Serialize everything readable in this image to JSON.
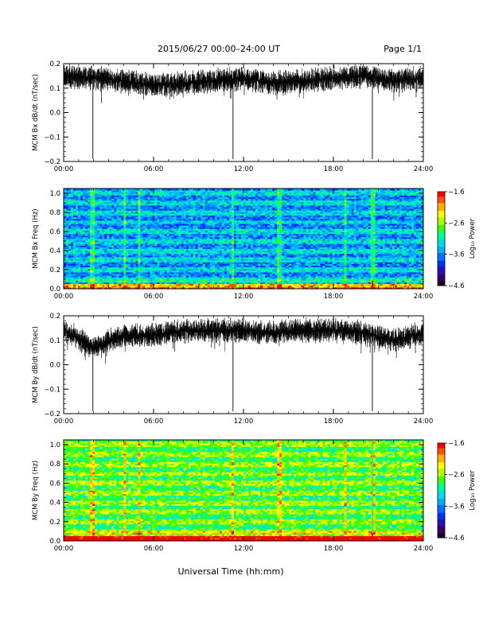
{
  "header": {
    "title": "2015/06/27  00:00–24:00 UT",
    "page": "Page 1/1"
  },
  "footer": {
    "xlabel": "Universal Time (hh:mm)"
  },
  "colors": {
    "trace": "#000000",
    "colormap": [
      "#1a0022",
      "#3a0060",
      "#2a10b0",
      "#0030ff",
      "#0070ff",
      "#00b0ff",
      "#00e0e0",
      "#00ff90",
      "#40ff00",
      "#b0ff00",
      "#ffff00",
      "#ffb000",
      "#ff5000",
      "#ff0000"
    ]
  },
  "chart_data": [
    {
      "type": "line",
      "ylabel": "MCM Bx dB/dt (nT/sec)",
      "x_range_hours": [
        0,
        24
      ],
      "xticks": [
        "00:00",
        "06:00",
        "12:00",
        "18:00",
        "24:00"
      ],
      "yticks": [
        "0.2",
        "0.1",
        "0.0",
        "−0.1",
        "−0.2"
      ],
      "ylim": [
        -0.2,
        0.2
      ],
      "series": [
        {
          "baseline_hours": [
            0,
            2,
            4,
            6,
            8,
            10,
            12,
            14,
            16,
            18,
            20,
            22,
            24
          ],
          "baseline_values": [
            0.15,
            0.14,
            0.13,
            0.11,
            0.12,
            0.13,
            0.14,
            0.12,
            0.13,
            0.14,
            0.15,
            0.13,
            0.14
          ],
          "spikes": [
            {
              "hour": 1.95,
              "value": -0.19
            },
            {
              "hour": 11.3,
              "value": -0.19
            },
            {
              "hour": 20.6,
              "value": -0.19
            }
          ]
        }
      ]
    },
    {
      "type": "heatmap",
      "ylabel": "MCM Bx Freq (Hz)",
      "x_range_hours": [
        0,
        24
      ],
      "xticks": [
        "00:00",
        "06:00",
        "12:00",
        "18:00",
        "24:00"
      ],
      "yticks": [
        "1.0",
        "0.8",
        "0.6",
        "0.4",
        "0.2",
        "0.0"
      ],
      "ylim": [
        0,
        1.05
      ],
      "colorbar": {
        "label": "Log₁₀ Power",
        "ticks": [
          "−1.6",
          "−2.6",
          "−3.6",
          "−4.6"
        ],
        "range": [
          -4.6,
          -1.6
        ]
      },
      "level": -3.6,
      "vertical_streaks_hours": [
        1.95,
        4.1,
        5.05,
        11.3,
        14.4,
        18.8,
        20.6
      ],
      "bright_streak_hour": 20.6
    },
    {
      "type": "line",
      "ylabel": "MCM By dB/dt (nT/sec)",
      "x_range_hours": [
        0,
        24
      ],
      "xticks": [
        "00:00",
        "06:00",
        "12:00",
        "18:00",
        "24:00"
      ],
      "yticks": [
        "0.2",
        "0.1",
        "0.0",
        "−0.1",
        "−0.2"
      ],
      "ylim": [
        -0.2,
        0.2
      ],
      "series": [
        {
          "baseline_hours": [
            0,
            2,
            4,
            6,
            8,
            10,
            12,
            14,
            16,
            18,
            20,
            22,
            24
          ],
          "baseline_values": [
            0.14,
            0.07,
            0.12,
            0.12,
            0.14,
            0.14,
            0.14,
            0.13,
            0.14,
            0.14,
            0.13,
            0.1,
            0.13
          ],
          "spikes": [
            {
              "hour": 1.95,
              "value": -0.19
            },
            {
              "hour": 11.3,
              "value": -0.19
            },
            {
              "hour": 20.6,
              "value": -0.19
            }
          ]
        }
      ]
    },
    {
      "type": "heatmap",
      "ylabel": "MCM By Freq (Hz)",
      "x_range_hours": [
        0,
        24
      ],
      "xticks": [
        "00:00",
        "06:00",
        "12:00",
        "18:00",
        "24:00"
      ],
      "yticks": [
        "1.0",
        "0.8",
        "0.6",
        "0.4",
        "0.2",
        "0.0"
      ],
      "ylim": [
        0,
        1.05
      ],
      "colorbar": {
        "label": "Log₁₀ Power",
        "ticks": [
          "−1.6",
          "−2.6",
          "−3.6",
          "−4.6"
        ],
        "range": [
          -4.6,
          -1.6
        ]
      },
      "level": -2.9,
      "vertical_streaks_hours": [
        1.95,
        4.1,
        5.05,
        11.3,
        14.4,
        18.8,
        20.6
      ],
      "bright_streak_hour": 20.6
    }
  ]
}
